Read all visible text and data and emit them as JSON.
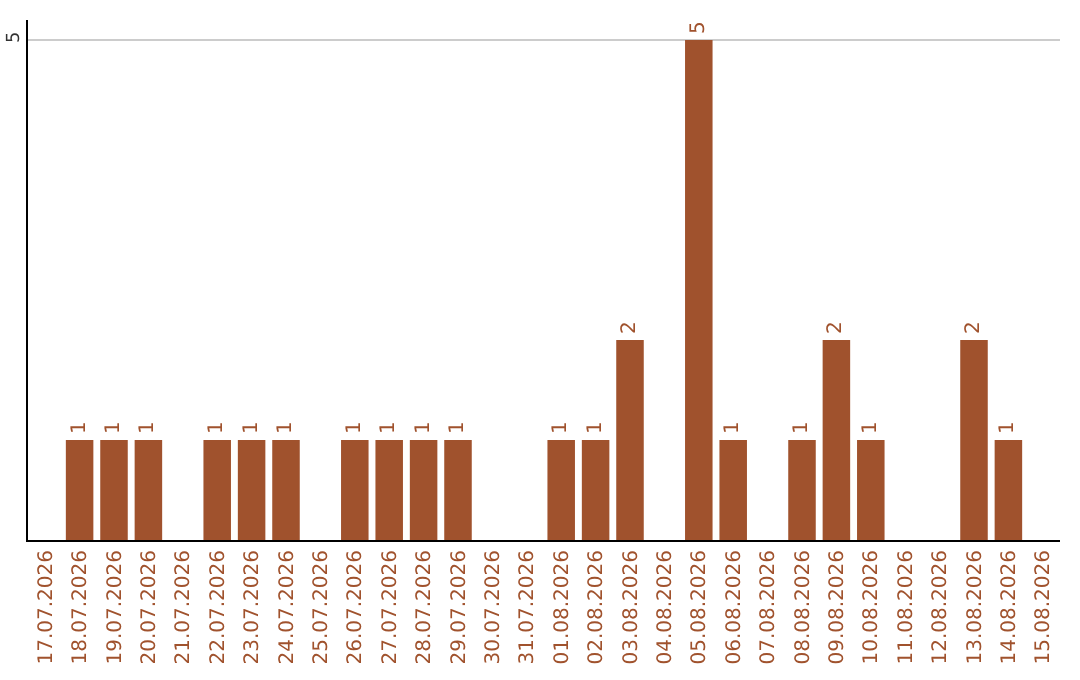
{
  "chart_data": {
    "type": "bar",
    "categories": [
      "17.07.2026",
      "18.07.2026",
      "19.07.2026",
      "20.07.2026",
      "21.07.2026",
      "22.07.2026",
      "23.07.2026",
      "24.07.2026",
      "25.07.2026",
      "26.07.2026",
      "27.07.2026",
      "28.07.2026",
      "29.07.2026",
      "30.07.2026",
      "31.07.2026",
      "01.08.2026",
      "02.08.2026",
      "03.08.2026",
      "04.08.2026",
      "05.08.2026",
      "06.08.2026",
      "07.08.2026",
      "08.08.2026",
      "09.08.2026",
      "10.08.2026",
      "11.08.2026",
      "12.08.2026",
      "13.08.2026",
      "14.08.2026",
      "15.08.2026"
    ],
    "values": [
      0,
      1,
      1,
      1,
      0,
      1,
      1,
      1,
      0,
      1,
      1,
      1,
      1,
      0,
      0,
      1,
      1,
      2,
      0,
      5,
      1,
      0,
      1,
      2,
      1,
      0,
      0,
      2,
      1,
      0
    ],
    "value_labels": [
      null,
      "1",
      "1",
      "1",
      null,
      "1",
      "1",
      "1",
      null,
      "1",
      "1",
      "1",
      "1",
      null,
      null,
      "1",
      "1",
      "2",
      null,
      "5",
      "1",
      null,
      "1",
      "2",
      "1",
      null,
      null,
      "2",
      "1",
      null
    ],
    "color": "#a0522d",
    "ylim": [
      0,
      5.2
    ],
    "yticks": [
      5
    ],
    "grid": "y",
    "legend": false
  }
}
